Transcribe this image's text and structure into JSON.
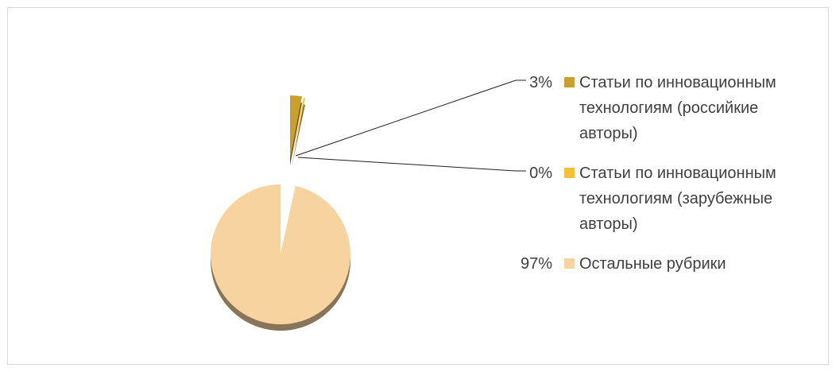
{
  "chart_data": {
    "type": "pie",
    "title": "",
    "series": [
      {
        "name": "",
        "slices": [
          {
            "label_lines": [
              "Статьи по инновационным",
              "технологиям (российкие",
              "авторы)"
            ],
            "value": 3,
            "value_label": "3%",
            "color": "#c9a02e"
          },
          {
            "label_lines": [
              "Статьи по инновационным",
              "технологиям (зарубежные",
              "авторы)"
            ],
            "value": 0.4,
            "value_label": "0%",
            "color": "#f5bf3a"
          },
          {
            "label_lines": [
              "Остальные рубрики"
            ],
            "value": 96.6,
            "value_label": "97%",
            "color": "#f7d3a0"
          }
        ]
      }
    ],
    "legend": "right",
    "exploded": true,
    "three_d": true
  }
}
